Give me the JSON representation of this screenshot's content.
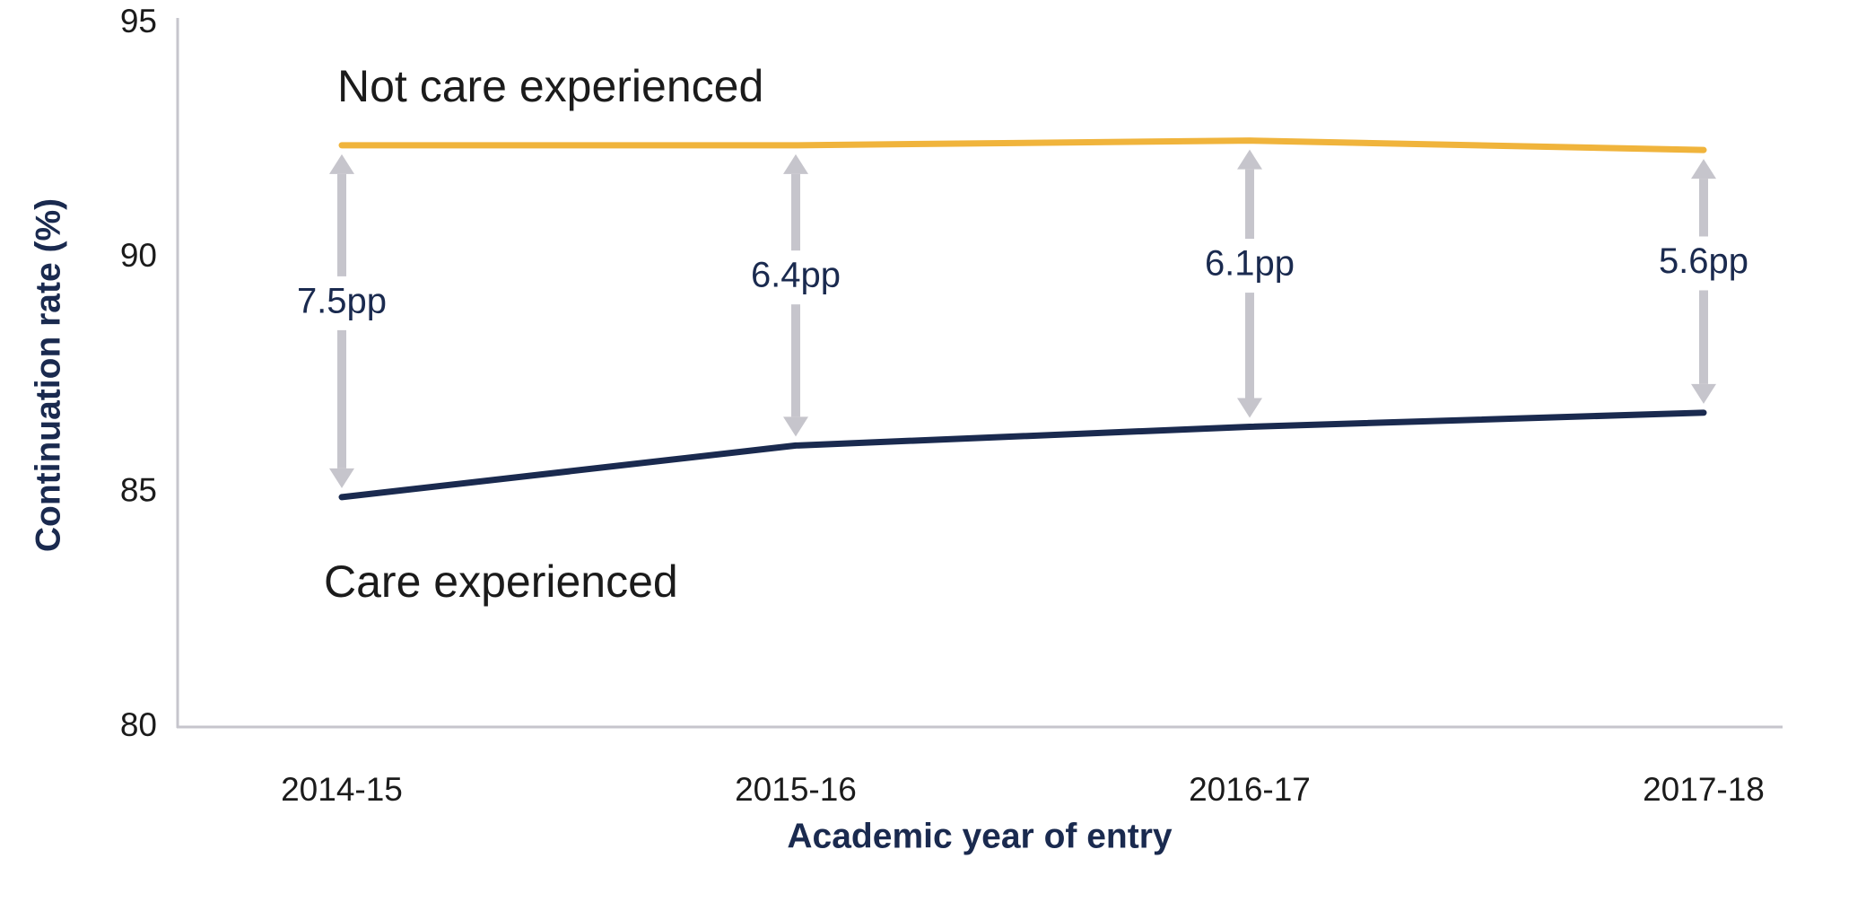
{
  "chart_data": {
    "type": "line",
    "x_label": "Academic year of entry",
    "y_label": "Continuation rate (%)",
    "categories": [
      "2014-15",
      "2015-16",
      "2016-17",
      "2017-18"
    ],
    "series": [
      {
        "name": "Not care experienced",
        "color": "#f0b43c",
        "values": [
          92.4,
          92.4,
          92.5,
          92.3
        ]
      },
      {
        "name": "Care experienced",
        "color": "#1a2a4f",
        "values": [
          84.9,
          86.0,
          86.4,
          86.7
        ]
      }
    ],
    "gap_labels": [
      "7.5pp",
      "6.4pp",
      "6.1pp",
      "5.6pp"
    ],
    "gap_color": "#c6c5cc",
    "ylim": [
      80,
      95
    ],
    "yticks": [
      80,
      85,
      90,
      95
    ],
    "grid": false
  }
}
